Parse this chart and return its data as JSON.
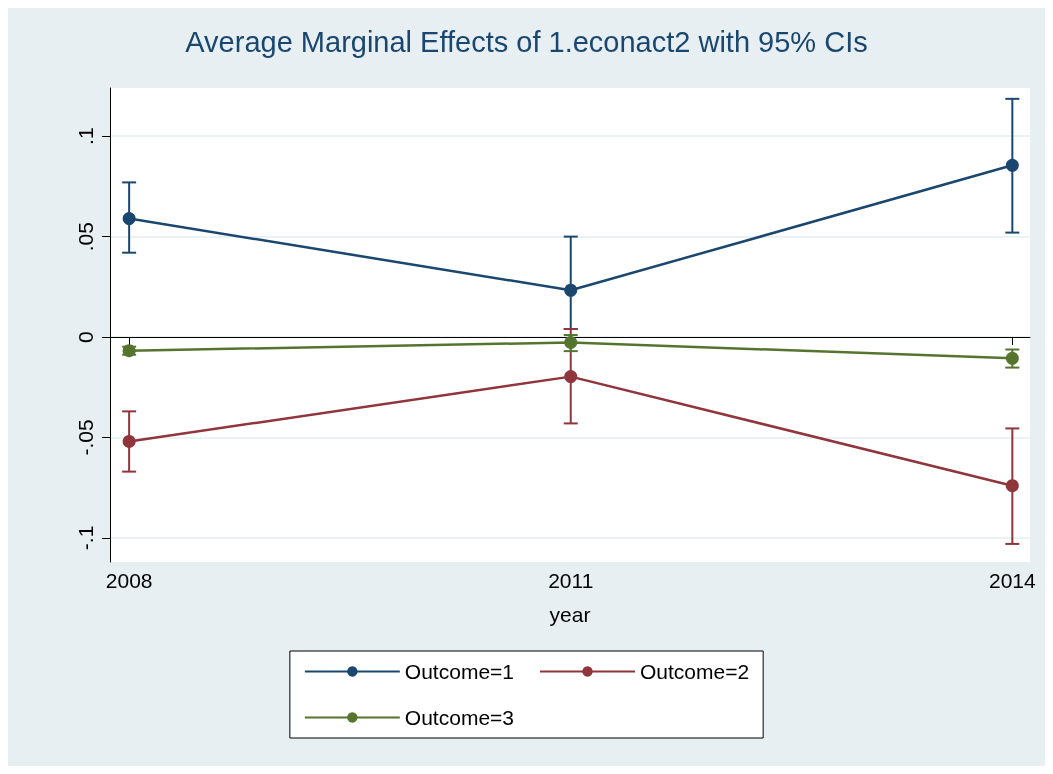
{
  "chart_data": {
    "type": "line",
    "title": "Average Marginal Effects of 1.econact2 with 95% CIs",
    "xlabel": "year",
    "x": [
      2008,
      2011,
      2014
    ],
    "xlim": [
      2007.87,
      2014.12
    ],
    "xticks": [
      2008,
      2011,
      2014
    ],
    "ylim": [
      -0.112,
      0.124
    ],
    "yticks": [
      {
        "value": -0.1,
        "label": "-.1"
      },
      {
        "value": -0.05,
        "label": "-.05"
      },
      {
        "value": 0,
        "label": "0"
      },
      {
        "value": 0.05,
        "label": ".05"
      },
      {
        "value": 0.1,
        "label": ".1"
      }
    ],
    "series": [
      {
        "name": "Outcome=1",
        "color": "#1a476f",
        "values": [
          0.059,
          0.0233,
          0.0855
        ],
        "errors": [
          [
            0.042,
            0.077
          ],
          [
            0.004,
            0.05
          ],
          [
            0.052,
            0.1186
          ]
        ]
      },
      {
        "name": "Outcome=2",
        "color": "#90353b",
        "values": [
          -0.052,
          -0.0197,
          -0.074
        ],
        "errors": [
          [
            -0.067,
            -0.037
          ],
          [
            -0.043,
            0.004
          ],
          [
            -0.103,
            -0.0455
          ]
        ]
      },
      {
        "name": "Outcome=3",
        "color": "#55752f",
        "values": [
          -0.0068,
          -0.0027,
          -0.0106
        ],
        "errors": [
          [
            -0.0088,
            -0.0048
          ],
          [
            -0.007,
            0.001
          ],
          [
            -0.0152,
            -0.0062
          ]
        ]
      }
    ],
    "grid": "y",
    "legend": "bottom",
    "marker": "circle",
    "line_style": "solid"
  }
}
